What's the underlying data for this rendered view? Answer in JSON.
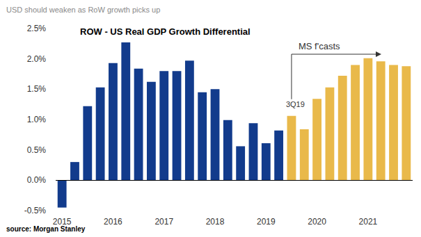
{
  "chart_data": {
    "type": "bar",
    "header": "USD should weaken as RoW growth picks up",
    "title": "ROW - US Real GDP Growth Differential",
    "source": "source: Morgan Stanley",
    "categories": [
      "2015",
      null,
      null,
      null,
      "2016",
      null,
      null,
      null,
      "2017",
      null,
      null,
      null,
      "2018",
      null,
      null,
      null,
      "2019",
      null,
      null,
      null,
      "2020",
      null,
      null,
      null,
      "2021",
      null,
      null,
      null
    ],
    "values": [
      -0.45,
      0.3,
      1.22,
      1.53,
      1.93,
      2.27,
      1.84,
      1.62,
      1.8,
      1.8,
      1.97,
      1.45,
      1.5,
      0.99,
      0.56,
      0.94,
      0.61,
      0.82,
      1.06,
      0.84,
      1.34,
      1.53,
      1.72,
      1.9,
      2.01,
      1.96,
      1.9,
      1.88
    ],
    "colors": [
      "#123b8c",
      "#123b8c",
      "#123b8c",
      "#123b8c",
      "#123b8c",
      "#123b8c",
      "#123b8c",
      "#123b8c",
      "#123b8c",
      "#123b8c",
      "#123b8c",
      "#123b8c",
      "#123b8c",
      "#123b8c",
      "#123b8c",
      "#123b8c",
      "#123b8c",
      "#123b8c",
      "#e9b94a",
      "#e9b94a",
      "#e9b94a",
      "#e9b94a",
      "#e9b94a",
      "#e9b94a",
      "#e9b94a",
      "#e9b94a",
      "#e9b94a",
      "#e9b94a"
    ],
    "annotations": [
      {
        "text": "3Q19",
        "index": 18
      },
      {
        "text": "MS f'casts",
        "index": 18
      }
    ],
    "ylim": [
      -0.5,
      2.5
    ],
    "yticks": [
      {
        "value": -0.5,
        "label": "-0.5%"
      },
      {
        "value": 0,
        "label": "0.0%"
      },
      {
        "value": 0.5,
        "label": "0.5%"
      },
      {
        "value": 1,
        "label": "1.0%"
      },
      {
        "value": 1.5,
        "label": "1.5%"
      },
      {
        "value": 2,
        "label": "2.0%"
      },
      {
        "value": 2.5,
        "label": "2.5%"
      }
    ],
    "grid": false
  }
}
